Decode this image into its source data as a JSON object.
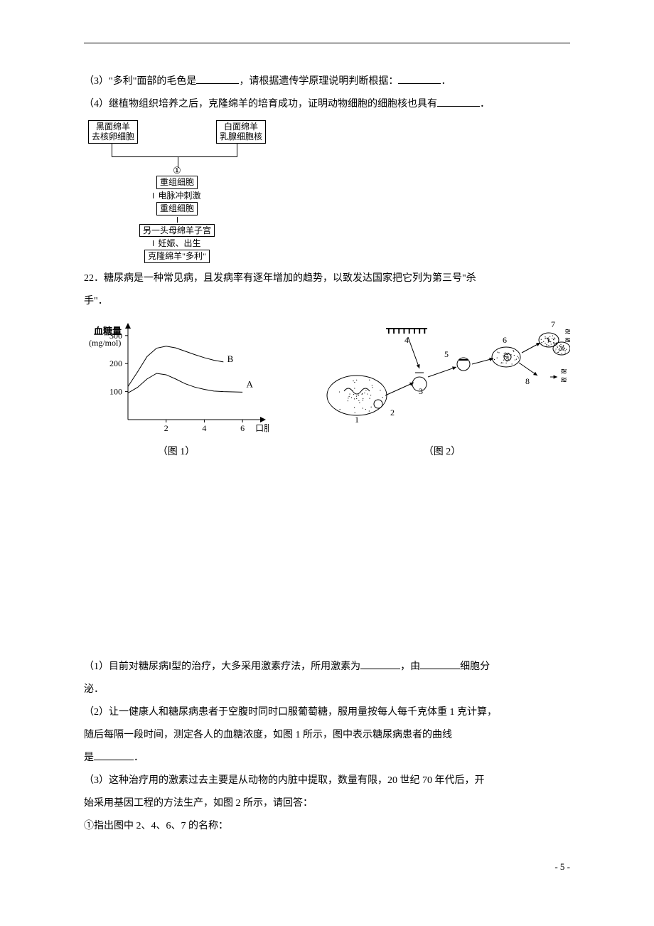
{
  "colors": {
    "text": "#000000",
    "background": "#ffffff",
    "rule": "#000000",
    "axis": "#000000",
    "curve": "#000000",
    "cell_outline": "#000000"
  },
  "typography": {
    "body_family": "SimSun",
    "body_size_pt": 10.5,
    "line_height": 2.0,
    "figure_label_size_pt": 9,
    "caption_size_pt": 10.5
  },
  "q3": {
    "p1_a": "（3）\"多利\"面部的毛色是",
    "p1_b": "，请根据遗传学原理说明判断根据：",
    "p1_c": "．"
  },
  "q4": {
    "p1_a": "（4）继植物组织培养之后，克隆绵羊的培育成功，证明动物细胞的细胞核也具有",
    "p1_b": "．"
  },
  "flowchart": {
    "top_left_l1": "黑面绵羊",
    "top_left_l2": "去核卵细胞",
    "top_right_l1": "白面绵羊",
    "top_right_l2": "乳腺细胞核",
    "step1_marker": "①",
    "box_recomb_cell": "重组细胞",
    "pulse_label": "电脉冲刺激",
    "box_recomb_cell2": "重组细胞",
    "box_uterus": "另一头母绵羊子宫",
    "stage_label": "妊娠、出生",
    "box_dolly": "克隆绵羊\"多利\""
  },
  "q22": {
    "intro_a": "22．糖尿病是一种常见病，且发病率有逐年增加的趋势，以致发达国家把它列为第三号\"杀",
    "intro_b": "手\"．",
    "p1_a": "（1）目前对糖尿病Ⅰ型的治疗，大多采用激素疗法，所用激素为",
    "p1_b": "，由",
    "p1_c": "细胞分",
    "p1_d": "泌．",
    "p2_a": "（2）让一健康人和糖尿病患者于空腹时同时口服葡萄糖，服用量按每人每千克体重 1 克计算，",
    "p2_b": "随后每隔一段时间，测定各人的血糖浓度，如图 1 所示，图中表示糖尿病患者的曲线",
    "p2_c": "是",
    "p2_d": "．",
    "p3_a": "（3）这种治疗用的激素过去主要是从动物的内脏中提取，数量有限，20 世纪 70 年代后，开",
    "p3_b": "始采用基因工程的方法生产，如图 2 所示，请回答：",
    "p3_c": "①指出图中 2、4、6、7 的名称："
  },
  "figure1": {
    "type": "line",
    "caption": "（图 1）",
    "y_label_l1": "血糖量",
    "y_label_l2": "(mg/mol)",
    "x_label": "口服后时间（h）",
    "x_ticks": [
      "2",
      "4",
      "6"
    ],
    "y_ticks": [
      "100",
      "200",
      "300"
    ],
    "xlim": [
      0,
      7
    ],
    "ylim": [
      0,
      330
    ],
    "series": [
      {
        "name": "A",
        "label": "A",
        "label_pos": [
          6.2,
          115
        ],
        "points": [
          [
            0,
            95
          ],
          [
            0.5,
            115
          ],
          [
            1,
            145
          ],
          [
            1.5,
            165
          ],
          [
            2,
            160
          ],
          [
            2.5,
            145
          ],
          [
            3,
            128
          ],
          [
            3.5,
            116
          ],
          [
            4,
            108
          ],
          [
            4.5,
            102
          ],
          [
            5,
            100
          ],
          [
            5.5,
            99
          ],
          [
            6,
            98
          ]
        ],
        "color": "#000000",
        "line_width": 1
      },
      {
        "name": "B",
        "label": "B",
        "label_pos": [
          5.2,
          205
        ],
        "points": [
          [
            0,
            118
          ],
          [
            0.5,
            170
          ],
          [
            1,
            225
          ],
          [
            1.5,
            255
          ],
          [
            2,
            262
          ],
          [
            2.5,
            256
          ],
          [
            3,
            244
          ],
          [
            3.5,
            232
          ],
          [
            4,
            221
          ],
          [
            4.5,
            212
          ],
          [
            5,
            206
          ]
        ],
        "color": "#000000",
        "line_width": 1
      }
    ],
    "axis_color": "#000000",
    "background_color": "#ffffff",
    "tick_fontsize": 12
  },
  "figure2": {
    "type": "diagram",
    "caption": "（图 2）",
    "labels": {
      "1": "1",
      "2": "2",
      "3": "3",
      "4": "4",
      "5": "5",
      "6": "6",
      "7": "7",
      "8": "8"
    },
    "scale_marker": "┳┳┳┳┳┳┳┳",
    "result_glyph": "≋",
    "outline_color": "#000000",
    "background_color": "#ffffff",
    "label_fontsize": 12
  },
  "footer": {
    "page_marker": "- 5 -"
  }
}
